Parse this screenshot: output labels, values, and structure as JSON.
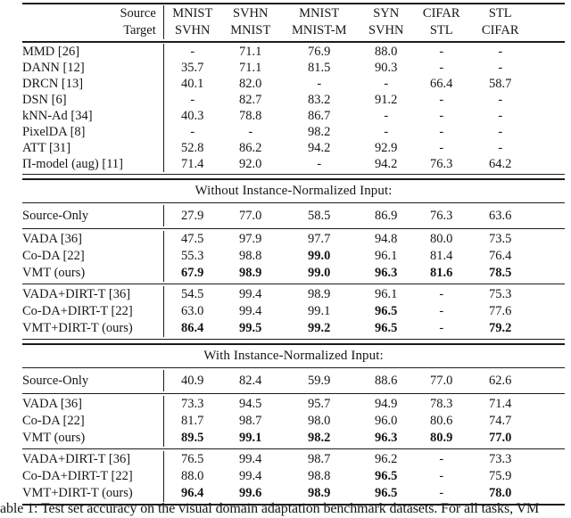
{
  "colors": {
    "text": "#161616",
    "background": "#ffffff",
    "rule": "#1c1c1c"
  },
  "table": {
    "header": {
      "source_label": "Source",
      "target_label": "Target",
      "columns": [
        {
          "source": "MNIST",
          "target": "SVHN"
        },
        {
          "source": "SVHN",
          "target": "MNIST"
        },
        {
          "source": "MNIST",
          "target": "MNIST-M"
        },
        {
          "source": "SYN",
          "target": "SVHN"
        },
        {
          "source": "CIFAR",
          "target": "STL"
        },
        {
          "source": "STL",
          "target": "CIFAR"
        }
      ]
    },
    "sections": [
      {
        "title": "",
        "groups": [
          [
            {
              "method": "MMD [26]",
              "values": [
                "-",
                "71.1",
                "76.9",
                "88.0",
                "-",
                "-"
              ]
            },
            {
              "method": "DANN [12]",
              "values": [
                "35.7",
                "71.1",
                "81.5",
                "90.3",
                "-",
                "-"
              ]
            },
            {
              "method": "DRCN [13]",
              "values": [
                "40.1",
                "82.0",
                "-",
                "-",
                "66.4",
                "58.7"
              ]
            },
            {
              "method": "DSN [6]",
              "values": [
                "-",
                "82.7",
                "83.2",
                "91.2",
                "-",
                "-"
              ]
            },
            {
              "method": "kNN-Ad [34]",
              "values": [
                "40.3",
                "78.8",
                "86.7",
                "-",
                "-",
                "-"
              ]
            },
            {
              "method": "PixelDA [8]",
              "values": [
                "-",
                "-",
                "98.2",
                "-",
                "-",
                "-"
              ]
            },
            {
              "method": "ATT [31]",
              "values": [
                "52.8",
                "86.2",
                "94.2",
                "92.9",
                "-",
                "-"
              ]
            },
            {
              "method": "Π-model (aug) [11]",
              "values": [
                "71.4",
                "92.0",
                "-",
                "94.2",
                "76.3",
                "64.2"
              ]
            }
          ]
        ]
      },
      {
        "title": "Without Instance-Normalized Input:",
        "groups": [
          [
            {
              "method": "Source-Only",
              "values": [
                "27.9",
                "77.0",
                "58.5",
                "86.9",
                "76.3",
                "63.6"
              ]
            }
          ],
          [
            {
              "method": "VADA [36]",
              "values": [
                "47.5",
                "97.9",
                "97.7",
                "94.8",
                "80.0",
                "73.5"
              ]
            },
            {
              "method": "Co-DA [22]",
              "values": [
                "55.3",
                "98.8",
                "99.0",
                "96.1",
                "81.4",
                "76.4"
              ],
              "bold": [
                false,
                false,
                true,
                false,
                false,
                false
              ]
            },
            {
              "method": "VMT (ours)",
              "values": [
                "67.9",
                "98.9",
                "99.0",
                "96.3",
                "81.6",
                "78.5"
              ],
              "bold": [
                true,
                true,
                true,
                true,
                true,
                true
              ]
            }
          ],
          [
            {
              "method": "VADA+DIRT-T [36]",
              "values": [
                "54.5",
                "99.4",
                "98.9",
                "96.1",
                "-",
                "75.3"
              ]
            },
            {
              "method": "Co-DA+DIRT-T [22]",
              "values": [
                "63.0",
                "99.4",
                "99.1",
                "96.5",
                "-",
                "77.6"
              ],
              "bold": [
                false,
                false,
                false,
                true,
                false,
                false
              ]
            },
            {
              "method": "VMT+DIRT-T (ours)",
              "values": [
                "86.4",
                "99.5",
                "99.2",
                "96.5",
                "-",
                "79.2"
              ],
              "bold": [
                true,
                true,
                true,
                true,
                false,
                true
              ]
            }
          ]
        ]
      },
      {
        "title": "With Instance-Normalized Input:",
        "groups": [
          [
            {
              "method": "Source-Only",
              "values": [
                "40.9",
                "82.4",
                "59.9",
                "88.6",
                "77.0",
                "62.6"
              ]
            }
          ],
          [
            {
              "method": "VADA [36]",
              "values": [
                "73.3",
                "94.5",
                "95.7",
                "94.9",
                "78.3",
                "71.4"
              ]
            },
            {
              "method": "Co-DA [22]",
              "values": [
                "81.7",
                "98.7",
                "98.0",
                "96.0",
                "80.6",
                "74.7"
              ]
            },
            {
              "method": "VMT (ours)",
              "values": [
                "89.5",
                "99.1",
                "98.2",
                "96.3",
                "80.9",
                "77.0"
              ],
              "bold": [
                true,
                true,
                true,
                true,
                true,
                true
              ]
            }
          ],
          [
            {
              "method": "VADA+DIRT-T [36]",
              "values": [
                "76.5",
                "99.4",
                "98.7",
                "96.2",
                "-",
                "73.3"
              ]
            },
            {
              "method": "Co-DA+DIRT-T [22]",
              "values": [
                "88.0",
                "99.4",
                "98.8",
                "96.5",
                "-",
                "75.9"
              ],
              "bold": [
                false,
                false,
                false,
                true,
                false,
                false
              ]
            },
            {
              "method": "VMT+DIRT-T (ours)",
              "values": [
                "96.4",
                "99.6",
                "98.9",
                "96.5",
                "-",
                "78.0"
              ],
              "bold": [
                true,
                true,
                true,
                true,
                false,
                true
              ]
            }
          ]
        ]
      }
    ]
  },
  "caption": "able 1: Test set accuracy on the visual domain adaptation benchmark datasets. For all tasks, VM"
}
